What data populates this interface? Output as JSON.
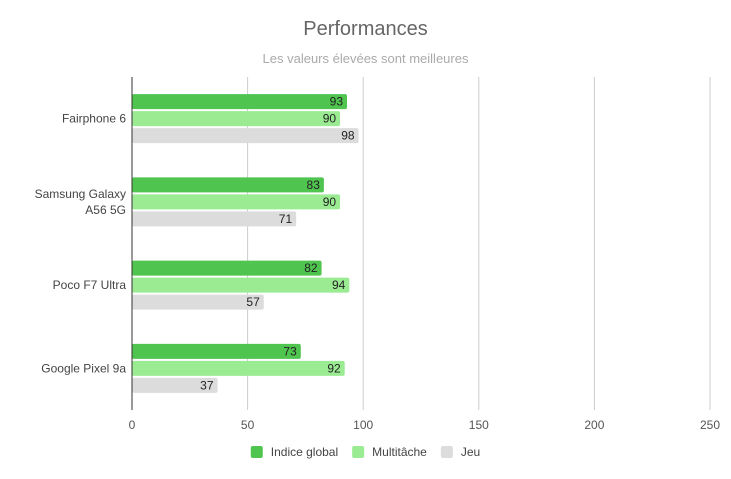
{
  "colors": {
    "series": [
      "#4fc44f",
      "#9beb93",
      "#dcdcdc"
    ],
    "grid": "#cccccc",
    "axis": "#333333"
  },
  "chart_data": {
    "type": "bar",
    "orientation": "horizontal",
    "title": "Performances",
    "subtitle": "Les valeurs élevées sont meilleures",
    "categories": [
      [
        "Fairphone 6"
      ],
      [
        "Samsung Galaxy",
        "A56 5G"
      ],
      [
        "Poco F7 Ultra"
      ],
      [
        "Google Pixel 9a"
      ]
    ],
    "series": [
      {
        "name": "Indice global",
        "values": [
          93,
          83,
          82,
          73
        ]
      },
      {
        "name": "Multitâche",
        "values": [
          90,
          90,
          94,
          92
        ]
      },
      {
        "name": "Jeu",
        "values": [
          98,
          71,
          57,
          37
        ]
      }
    ],
    "xlim": [
      0,
      250
    ],
    "xticks": [
      0,
      50,
      100,
      150,
      200,
      250
    ],
    "grid": true,
    "legend": "bottom"
  }
}
